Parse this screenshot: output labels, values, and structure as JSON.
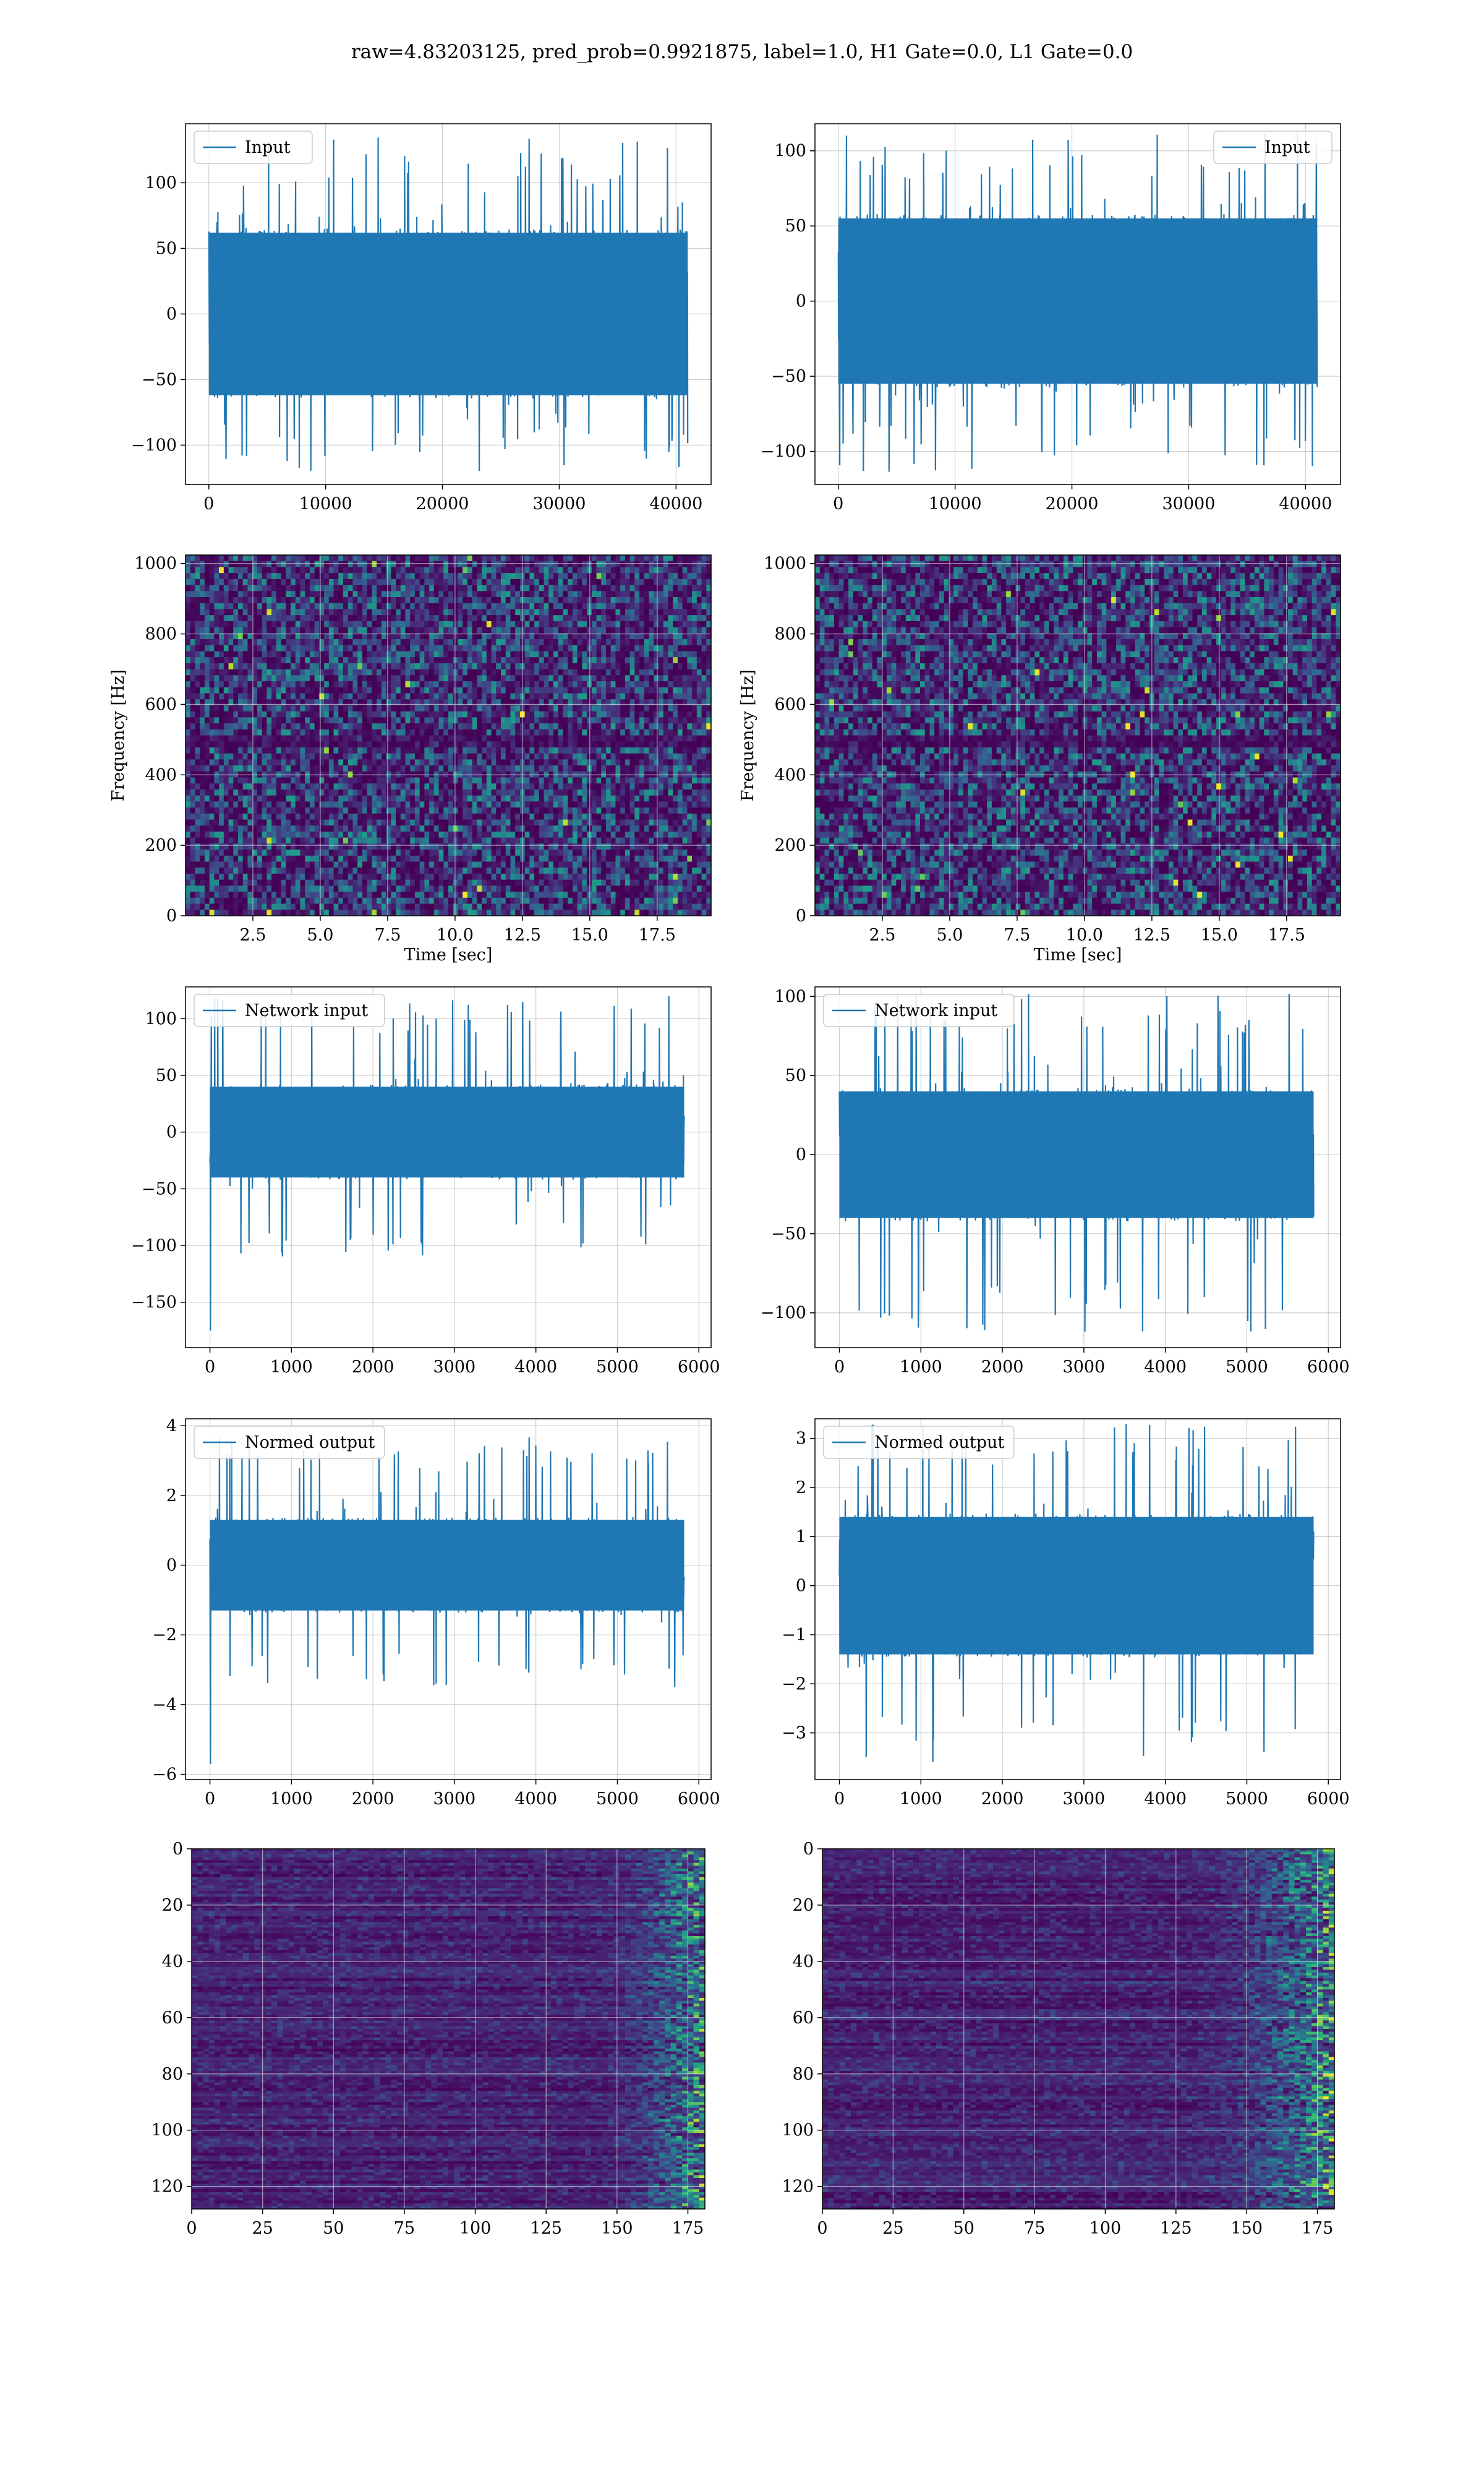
{
  "figure": {
    "suptitle": "raw=4.83203125, pred_prob=0.9921875, label=1.0, H1 Gate=0.0, L1 Gate=0.0",
    "line_color": "#1f77b4"
  },
  "chart_data": [
    {
      "id": "input_h1",
      "type": "line",
      "legend": "Input",
      "legend_loc": "upper left",
      "series": [
        {
          "name": "Input",
          "description": "dense noise band",
          "y_range": [
            -120,
            135
          ]
        }
      ],
      "xlim": [
        -2000,
        43000
      ],
      "ylim": [
        -130,
        145
      ],
      "xticks": [
        0,
        10000,
        20000,
        30000,
        40000
      ],
      "yticks": [
        100,
        50,
        0,
        -50,
        -100
      ],
      "band": {
        "x": [
          0,
          41000
        ],
        "core": [
          -62,
          62
        ],
        "spike": [
          -120,
          135
        ]
      },
      "grid": true,
      "xlabel": "",
      "ylabel": ""
    },
    {
      "id": "input_l1",
      "type": "line",
      "legend": "Input",
      "legend_loc": "upper right",
      "series": [
        {
          "name": "Input",
          "description": "dense noise band",
          "y_range": [
            -115,
            113
          ]
        }
      ],
      "xlim": [
        -2000,
        43000
      ],
      "ylim": [
        -122,
        118
      ],
      "xticks": [
        0,
        10000,
        20000,
        30000,
        40000
      ],
      "yticks": [
        100,
        50,
        0,
        -50,
        -100
      ],
      "band": {
        "x": [
          0,
          41000
        ],
        "core": [
          -55,
          55
        ],
        "spike": [
          -115,
          113
        ]
      },
      "grid": true,
      "xlabel": "",
      "ylabel": ""
    },
    {
      "id": "spec_h1",
      "type": "heatmap",
      "colormap": "viridis",
      "xlabel": "Time [sec]",
      "ylabel": "Frequency [Hz]",
      "xlim": [
        0,
        19.5
      ],
      "ylim": [
        0,
        1024
      ],
      "xticks": [
        2.5,
        5.0,
        7.5,
        10.0,
        12.5,
        15.0,
        17.5
      ],
      "yticks": [
        0,
        200,
        400,
        600,
        800,
        1000
      ],
      "dark_band": [
        480,
        510
      ],
      "grid": true
    },
    {
      "id": "spec_l1",
      "type": "heatmap",
      "colormap": "viridis",
      "xlabel": "Time [sec]",
      "ylabel": "Frequency [Hz]",
      "xlim": [
        0,
        19.5
      ],
      "ylim": [
        0,
        1024
      ],
      "xticks": [
        2.5,
        5.0,
        7.5,
        10.0,
        12.5,
        15.0,
        17.5
      ],
      "yticks": [
        0,
        200,
        400,
        600,
        800,
        1000
      ],
      "dark_band": [
        480,
        510
      ],
      "grid": true
    },
    {
      "id": "netin_h1",
      "type": "line",
      "legend": "Network input",
      "legend_loc": "upper left",
      "series": [
        {
          "name": "Network input",
          "description": "noise band with initial dip",
          "y_range": [
            -175,
            122
          ]
        }
      ],
      "xlim": [
        -300,
        6150
      ],
      "ylim": [
        -190,
        128
      ],
      "xticks": [
        0,
        1000,
        2000,
        3000,
        4000,
        5000,
        6000
      ],
      "yticks": [
        100,
        50,
        0,
        -50,
        -100,
        -150
      ],
      "band": {
        "x": [
          0,
          5820
        ],
        "core": [
          -40,
          40
        ],
        "spike": [
          -110,
          120
        ],
        "initial_dip": -175
      },
      "grid": true,
      "xlabel": "",
      "ylabel": ""
    },
    {
      "id": "netin_l1",
      "type": "line",
      "legend": "Network input",
      "legend_loc": "upper left",
      "series": [
        {
          "name": "Network input",
          "description": "noise band",
          "y_range": [
            -112,
            102
          ]
        }
      ],
      "xlim": [
        -300,
        6150
      ],
      "ylim": [
        -122,
        106
      ],
      "xticks": [
        0,
        1000,
        2000,
        3000,
        4000,
        5000,
        6000
      ],
      "yticks": [
        100,
        50,
        0,
        -50,
        -100
      ],
      "band": {
        "x": [
          0,
          5820
        ],
        "core": [
          -40,
          40
        ],
        "spike": [
          -112,
          102
        ]
      },
      "grid": true,
      "xlabel": "",
      "ylabel": ""
    },
    {
      "id": "norm_h1",
      "type": "line",
      "legend": "Normed output",
      "legend_loc": "upper left",
      "series": [
        {
          "name": "Normed output",
          "description": "normalized noise band with initial dip",
          "y_range": [
            -5.7,
            3.7
          ]
        }
      ],
      "xlim": [
        -300,
        6150
      ],
      "ylim": [
        -6.15,
        4.2
      ],
      "xticks": [
        0,
        1000,
        2000,
        3000,
        4000,
        5000,
        6000
      ],
      "yticks": [
        4,
        2,
        0,
        -2,
        -4,
        -6
      ],
      "band": {
        "x": [
          0,
          5820
        ],
        "core": [
          -1.3,
          1.3
        ],
        "spike": [
          -3.5,
          3.7
        ],
        "initial_dip": -5.7
      },
      "grid": true,
      "xlabel": "",
      "ylabel": ""
    },
    {
      "id": "norm_l1",
      "type": "line",
      "legend": "Normed output",
      "legend_loc": "upper left",
      "series": [
        {
          "name": "Normed output",
          "description": "normalized noise band",
          "y_range": [
            -3.6,
            3.3
          ]
        }
      ],
      "xlim": [
        -300,
        6150
      ],
      "ylim": [
        -3.95,
        3.4
      ],
      "xticks": [
        0,
        1000,
        2000,
        3000,
        4000,
        5000,
        6000
      ],
      "yticks": [
        3,
        2,
        1,
        0,
        -1,
        -2,
        -3
      ],
      "band": {
        "x": [
          0,
          5820
        ],
        "core": [
          -1.4,
          1.4
        ],
        "spike": [
          -3.6,
          3.3
        ]
      },
      "grid": true,
      "xlabel": "",
      "ylabel": ""
    },
    {
      "id": "feat_h1",
      "type": "heatmap",
      "colormap": "viridis",
      "xlim": [
        0,
        181
      ],
      "ylim": [
        128,
        0
      ],
      "xticks": [
        0,
        25,
        50,
        75,
        100,
        125,
        150,
        175
      ],
      "yticks": [
        0,
        20,
        40,
        60,
        80,
        100,
        120
      ],
      "hot_region_x": [
        140,
        181
      ],
      "grid": true,
      "xlabel": "",
      "ylabel": ""
    },
    {
      "id": "feat_l1",
      "type": "heatmap",
      "colormap": "viridis",
      "xlim": [
        0,
        181
      ],
      "ylim": [
        128,
        0
      ],
      "xticks": [
        0,
        25,
        50,
        75,
        100,
        125,
        150,
        175
      ],
      "yticks": [
        0,
        20,
        40,
        60,
        80,
        100,
        120
      ],
      "hot_region_x": [
        125,
        181
      ],
      "grid": true,
      "xlabel": "",
      "ylabel": ""
    }
  ]
}
